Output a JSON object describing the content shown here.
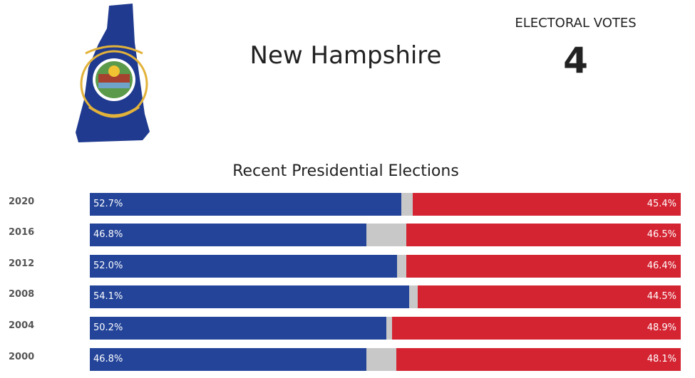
{
  "state": {
    "name": "New Hampshire",
    "flag_icon": "new-hampshire-flag-map-icon"
  },
  "electoral": {
    "label": "ELECTORAL VOTES",
    "value": "4"
  },
  "elections": {
    "title": "Recent Presidential Elections",
    "colors": {
      "dem": "#234499",
      "rep": "#d42432",
      "other": "#c8c8c8"
    },
    "rows": [
      {
        "year": "2020",
        "dem": 52.7,
        "rep": 45.4,
        "dem_label": "52.7%",
        "rep_label": "45.4%"
      },
      {
        "year": "2016",
        "dem": 46.8,
        "rep": 46.5,
        "dem_label": "46.8%",
        "rep_label": "46.5%"
      },
      {
        "year": "2012",
        "dem": 52.0,
        "rep": 46.4,
        "dem_label": "52.0%",
        "rep_label": "46.4%"
      },
      {
        "year": "2008",
        "dem": 54.1,
        "rep": 44.5,
        "dem_label": "54.1%",
        "rep_label": "44.5%"
      },
      {
        "year": "2004",
        "dem": 50.2,
        "rep": 48.9,
        "dem_label": "50.2%",
        "rep_label": "48.9%"
      },
      {
        "year": "2000",
        "dem": 46.8,
        "rep": 48.1,
        "dem_label": "46.8%",
        "rep_label": "48.1%"
      }
    ]
  }
}
